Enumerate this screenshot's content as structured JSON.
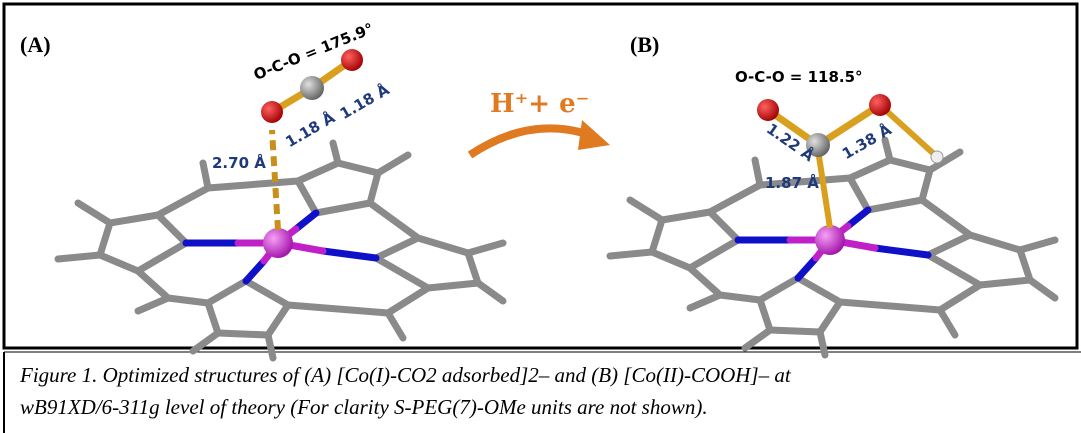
{
  "panel_a": {
    "label": "(A)",
    "angle": "O-C-O = 175.9°",
    "bond_co_1": "1.18 Å",
    "bond_co_2": "1.18 Å",
    "distance": "2.70 Å"
  },
  "reaction": "H⁺+ e⁻",
  "panel_b": {
    "label": "(B)",
    "angle": "O-C-O = 118.5°",
    "bond_co_1": "1.22 Å",
    "bond_co_2": "1.38 Å",
    "distance": "1.87 Å"
  },
  "caption": {
    "line_1": "Figure 1. Optimized structures of (A) [Co(I)-CO2 adsorbed]2– and (B) [Co(II)-COOH]– at",
    "line_2": "wB91XD/6-311g level of theory (For clarity S-PEG(7)-OMe units are not shown)."
  }
}
